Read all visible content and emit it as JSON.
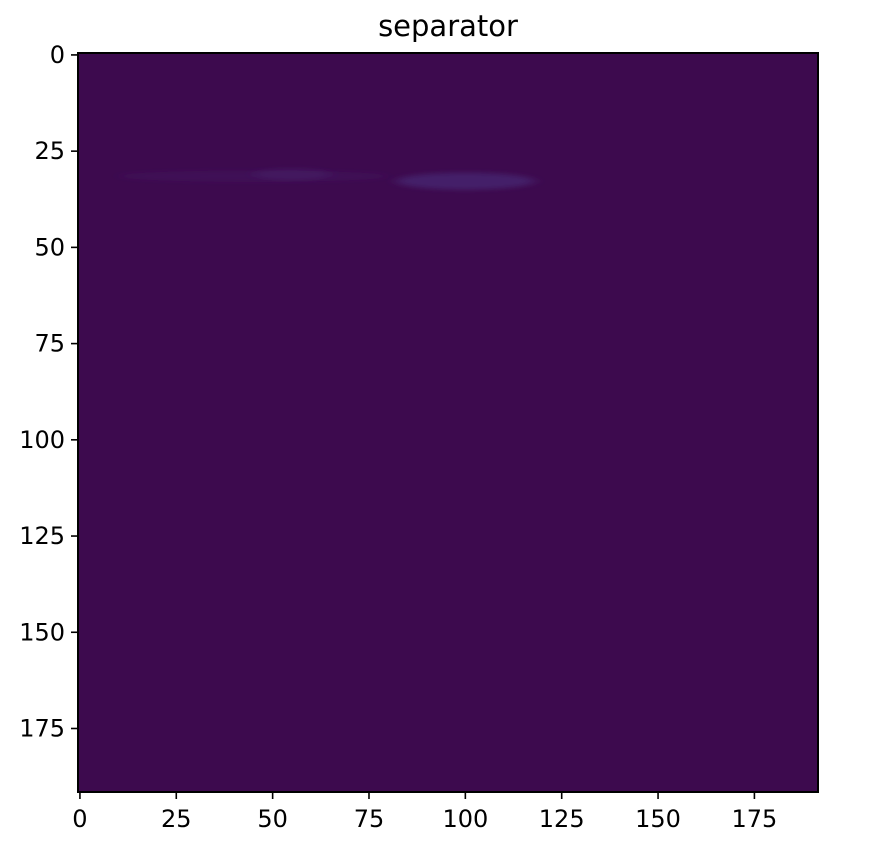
{
  "chart_data": {
    "type": "heatmap",
    "title": "separator",
    "xlabel": "",
    "ylabel": "",
    "xlim": [
      -0.5,
      191.5
    ],
    "ylim": [
      191.5,
      -0.5
    ],
    "x_ticks": [
      0,
      25,
      50,
      75,
      100,
      125,
      150,
      175
    ],
    "y_ticks": [
      0,
      25,
      50,
      75,
      100,
      125,
      150,
      175
    ],
    "image_shape": [
      192,
      192
    ],
    "colormap": "viridis",
    "background_value_color": "#3d0a4e",
    "grid": false,
    "features": [
      {
        "kind": "faint-streak",
        "x_range": [
          10,
          80
        ],
        "y_center": 31.5,
        "y_halfwidth": 1.5,
        "intensity": 0.03
      },
      {
        "kind": "faint-blob",
        "x_center": 55,
        "x_halfwidth": 10,
        "y_center": 31,
        "y_halfwidth": 1.5,
        "intensity": 0.045
      },
      {
        "kind": "faint-blob",
        "x_center": 100,
        "x_halfwidth": 18,
        "y_center": 32.8,
        "y_halfwidth": 2.2,
        "intensity": 0.1
      }
    ]
  }
}
